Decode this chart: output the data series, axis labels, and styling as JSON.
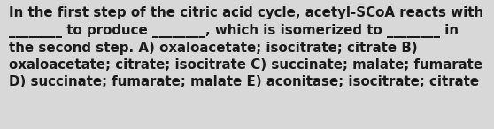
{
  "background_color": "#d8d8d8",
  "text_color": "#1a1a1a",
  "line1": "In the first step of the citric acid cycle, acetyl-SCoA reacts with",
  "line2": "________ to produce ________, which is isomerized to ________ in",
  "line3": "the second step. A) oxaloacetate; isocitrate; citrate B)",
  "line4": "oxaloacetate; citrate; isocitrate C) succinate; malate; fumarate",
  "line5": "D) succinate; fumarate; malate E) aconitase; isocitrate; citrate",
  "fontsize": 10.8,
  "fig_width": 5.58,
  "fig_height": 1.46,
  "dpi": 100
}
